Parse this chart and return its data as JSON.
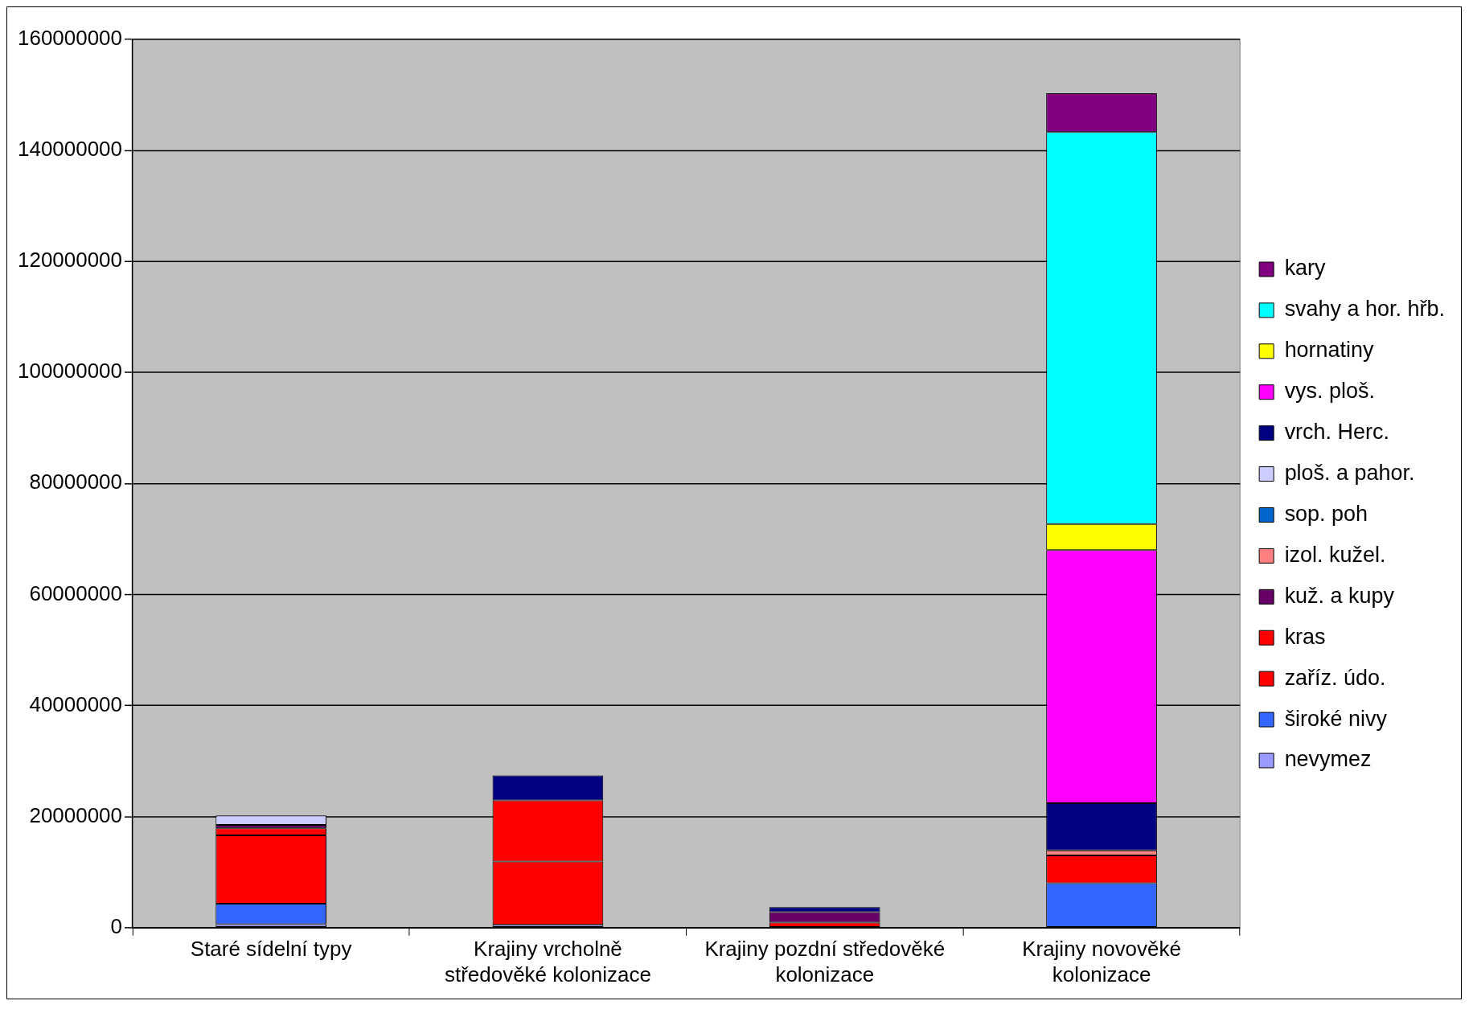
{
  "chart_data": {
    "type": "bar",
    "stacked": true,
    "categories": [
      "Staré sídelní typy",
      "Krajiny vrcholně středověké kolonizace",
      "Krajiny pozdní středověké kolonizace",
      "Krajiny novověké kolonizace"
    ],
    "ylim": [
      0,
      160000000
    ],
    "yticks": [
      0,
      20000000,
      40000000,
      60000000,
      80000000,
      100000000,
      120000000,
      140000000,
      160000000
    ],
    "grid": "y",
    "legend": "right",
    "series": [
      {
        "name": "nevymez",
        "color": "#9999ff",
        "values": [
          600000,
          500000,
          null,
          null
        ]
      },
      {
        "name": "široké nivy",
        "color": "#3366ff",
        "values": [
          3700000,
          null,
          null,
          8000000
        ]
      },
      {
        "name": "zaříz. údo.",
        "color": "#ff0000",
        "values": [
          12300000,
          11400000,
          900000,
          null
        ]
      },
      {
        "name": "kras",
        "color": "#ff0000",
        "values": [
          1300000,
          11000000,
          null,
          5000000
        ]
      },
      {
        "name": "kuž. a kupy",
        "color": "#660066",
        "values": [
          600000,
          null,
          1900000,
          null
        ]
      },
      {
        "name": "izol. kužel.",
        "color": "#ff8080",
        "values": [
          null,
          null,
          null,
          900000
        ]
      },
      {
        "name": "sop. poh",
        "color": "#0066cc",
        "values": [
          null,
          null,
          null,
          null
        ]
      },
      {
        "name": "ploš. a pahor.",
        "color": "#ccccff",
        "values": [
          1700000,
          null,
          null,
          null
        ]
      },
      {
        "name": "vrch. Herc.",
        "color": "#000080",
        "values": [
          null,
          4500000,
          900000,
          8500000
        ]
      },
      {
        "name": "vys. ploš.",
        "color": "#ff00ff",
        "values": [
          null,
          null,
          null,
          45600000
        ]
      },
      {
        "name": "hornatiny",
        "color": "#ffff00",
        "values": [
          null,
          null,
          null,
          4700000
        ]
      },
      {
        "name": "svahy a hor. hřb.",
        "color": "#00ffff",
        "values": [
          null,
          null,
          null,
          70600000
        ]
      },
      {
        "name": "kary",
        "color": "#800080",
        "values": [
          null,
          null,
          null,
          7000000
        ]
      }
    ]
  }
}
